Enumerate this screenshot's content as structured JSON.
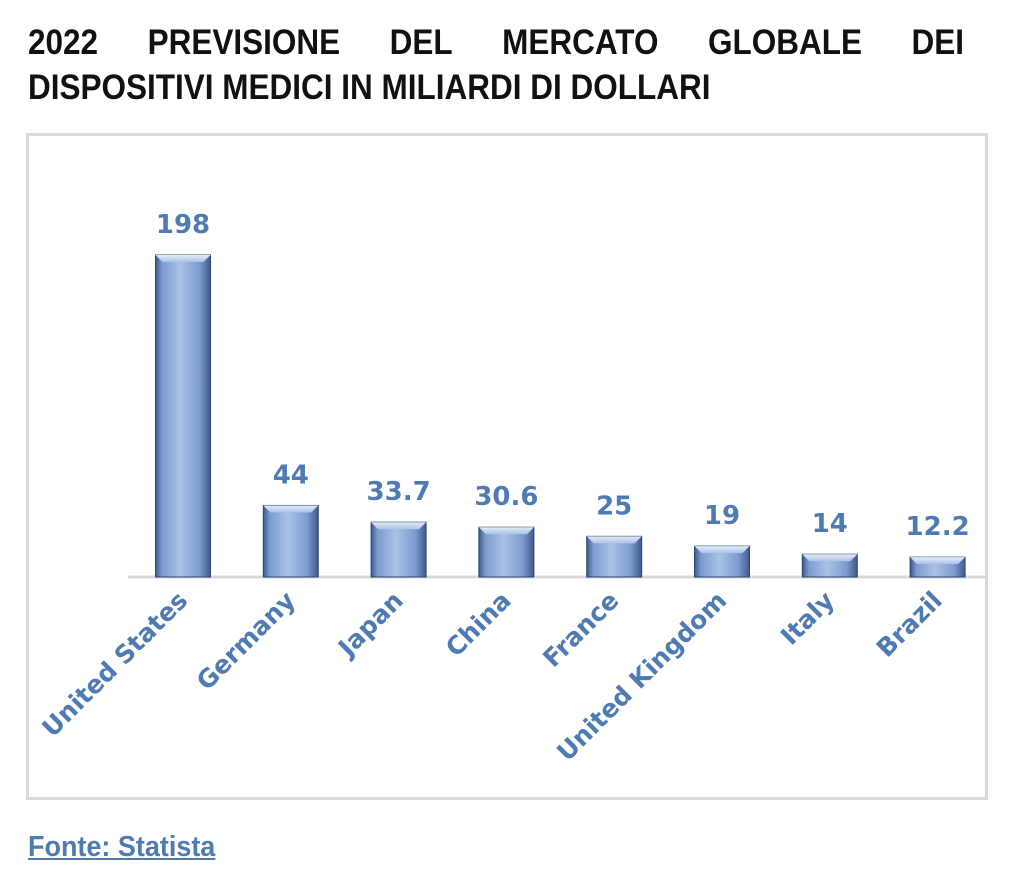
{
  "title": {
    "line1": [
      "2022",
      "PREVISIONE",
      "DEL",
      "MERCATO",
      "GLOBALE",
      "DEI"
    ],
    "line2": "DISPOSITIVI MEDICI IN MILIARDI DI DOLLARI"
  },
  "source": "Fonte: Statista",
  "colors": {
    "bar_light": "#a9c2e6",
    "bar_mid": "#7c9bd0",
    "bar_dark": "#3d5a8a",
    "label": "#4f7bb5",
    "axis": "#d9d9d9"
  },
  "chart_data": {
    "type": "bar",
    "categories": [
      "United States",
      "Germany",
      "Japan",
      "China",
      "France",
      "United Kingdom",
      "Italy",
      "Brazil"
    ],
    "values": [
      198,
      44,
      33.7,
      30.6,
      25,
      19,
      14,
      12.2
    ],
    "value_labels": [
      "198",
      "44",
      "33.7",
      "30.6",
      "25",
      "19",
      "14",
      "12.2"
    ],
    "xlabel": "",
    "ylabel": "",
    "ylim": [
      0,
      198
    ],
    "grid": false,
    "legend": "none"
  }
}
